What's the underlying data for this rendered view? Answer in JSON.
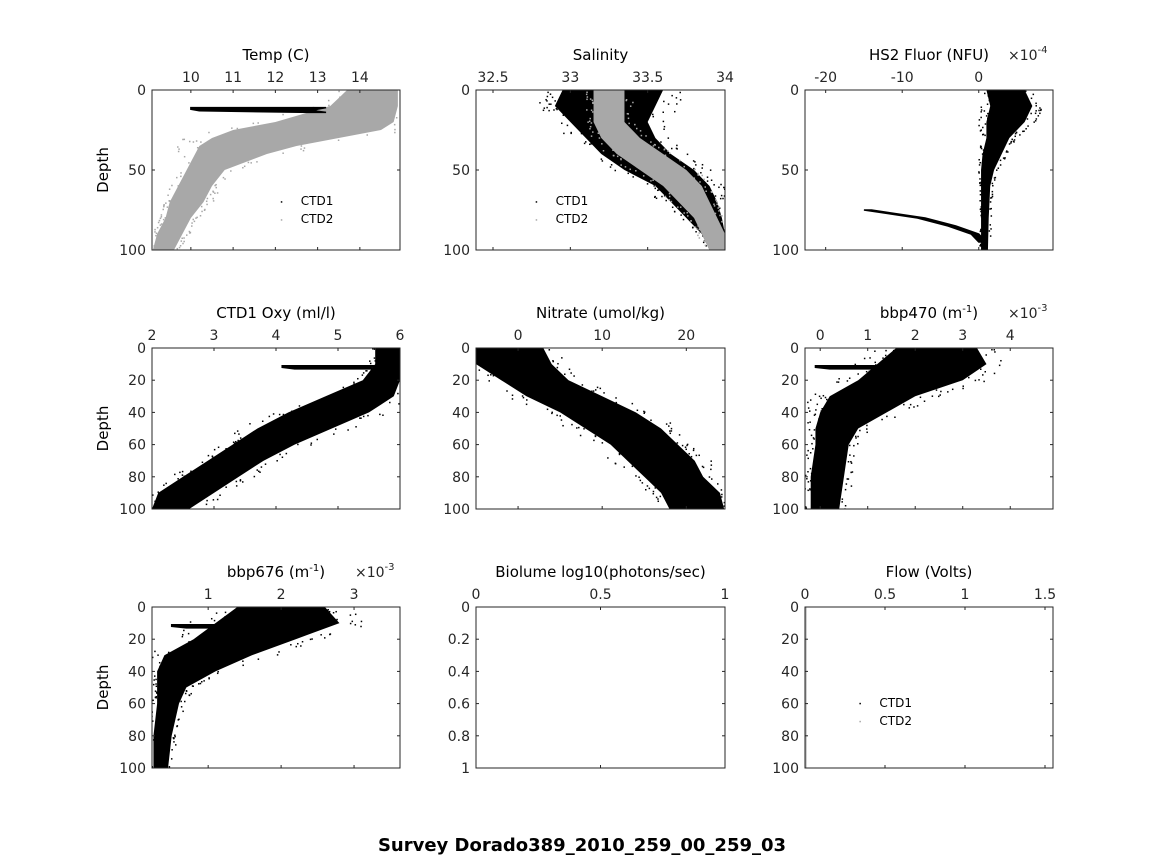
{
  "suptitle": "Survey Dorado389_2010_259_00_259_03",
  "colors": {
    "ctd1": "#000000",
    "ctd2": "#a8a8a8",
    "axis": "#262626"
  },
  "chart_data": [
    {
      "type": "scatter",
      "title": "Temp (C)",
      "title_sup": "",
      "title_end": "",
      "exponent": "",
      "ylabel": "Depth",
      "xlim": [
        9.08,
        14.95
      ],
      "xticks": [
        10,
        11,
        12,
        13,
        14
      ],
      "xticklabels": [
        "10",
        "11",
        "12",
        "13",
        "14"
      ],
      "ylim": [
        0,
        100
      ],
      "yticks": [
        0,
        50,
        100
      ],
      "yticklabels": [
        "0",
        "50",
        "100"
      ],
      "legend": {
        "entries": [
          "CTD1",
          "CTD2"
        ],
        "placement": "lower-right"
      },
      "series": [
        {
          "name": "CTD2",
          "color": "#a8a8a8",
          "depth": [
            0,
            10,
            20,
            25,
            30,
            35,
            40,
            50,
            60,
            70,
            80,
            90,
            100
          ],
          "lo": [
            13.7,
            13.3,
            12.0,
            11.0,
            10.5,
            10.2,
            10.1,
            9.9,
            9.7,
            9.5,
            9.4,
            9.2,
            9.1
          ],
          "hi": [
            14.9,
            14.9,
            14.8,
            14.5,
            13.5,
            12.5,
            11.8,
            10.8,
            10.5,
            10.3,
            10.0,
            9.8,
            9.6
          ]
        },
        {
          "name": "CTD1",
          "color": "#000000",
          "depth": [
            11,
            12,
            13,
            14
          ],
          "lo": [
            10.0,
            10.0,
            10.2,
            12.8
          ],
          "hi": [
            13.2,
            13.0,
            12.9,
            13.2
          ],
          "style": "line"
        }
      ]
    },
    {
      "type": "scatter",
      "title": "Salinity",
      "title_sup": "",
      "title_end": "",
      "exponent": "",
      "ylabel": "",
      "xlim": [
        32.39,
        34.0
      ],
      "xticks": [
        32.5,
        33,
        33.5,
        34
      ],
      "xticklabels": [
        "32.5",
        "33",
        "33.5",
        "34"
      ],
      "ylim": [
        0,
        100
      ],
      "yticks": [
        0,
        50,
        100
      ],
      "yticklabels": [
        "0",
        "50",
        "100"
      ],
      "legend": {
        "entries": [
          "CTD1",
          "CTD2"
        ],
        "placement": "lower-left"
      },
      "series": [
        {
          "name": "CTD1",
          "color": "#000000",
          "depth": [
            0,
            10,
            20,
            30,
            40,
            50,
            60,
            70,
            80,
            90,
            100
          ],
          "lo": [
            32.95,
            32.9,
            33.0,
            33.1,
            33.2,
            33.35,
            33.55,
            33.65,
            33.75,
            33.85,
            33.9
          ],
          "hi": [
            33.6,
            33.55,
            33.5,
            33.55,
            33.65,
            33.8,
            33.9,
            33.95,
            33.98,
            34.0,
            34.0
          ]
        },
        {
          "name": "CTD2",
          "color": "#a8a8a8",
          "depth": [
            0,
            10,
            20,
            30,
            40,
            50,
            60,
            70,
            80,
            90,
            100
          ],
          "lo": [
            33.15,
            33.15,
            33.15,
            33.2,
            33.3,
            33.45,
            33.6,
            33.7,
            33.8,
            33.85,
            33.9
          ],
          "hi": [
            33.35,
            33.35,
            33.35,
            33.45,
            33.6,
            33.75,
            33.85,
            33.9,
            33.95,
            34.0,
            34.0
          ]
        }
      ]
    },
    {
      "type": "scatter",
      "title": "HS2 Fluor (NFU)",
      "title_sup": "",
      "title_end": "",
      "exponent": "-4",
      "ylabel": "",
      "xlim": [
        -22.7,
        9.7
      ],
      "xticks": [
        -20,
        -10,
        0
      ],
      "xticklabels": [
        "-20",
        "-10",
        "0"
      ],
      "ylim": [
        0,
        100
      ],
      "yticks": [
        0,
        50,
        100
      ],
      "yticklabels": [
        "0",
        "50",
        "100"
      ],
      "legend": null,
      "series": [
        {
          "name": "CTD1",
          "color": "#000000",
          "depth": [
            0,
            10,
            20,
            30,
            40,
            50,
            60,
            80,
            100
          ],
          "lo": [
            1,
            1.5,
            1,
            1,
            0.5,
            0.3,
            0.3,
            0.3,
            0.3
          ],
          "hi": [
            6,
            7,
            6,
            4,
            3,
            2,
            1.5,
            1.3,
            1.2
          ]
        },
        {
          "name": "CTD1",
          "color": "#000000",
          "depth": [
            75,
            80,
            85,
            90,
            95
          ],
          "lo": [
            -15,
            -8,
            -4,
            -1,
            0
          ],
          "hi": [
            -14,
            -7,
            -3,
            0,
            1
          ],
          "style": "line"
        }
      ]
    },
    {
      "type": "scatter",
      "title": "CTD1 Oxy (ml/l)",
      "title_sup": "",
      "title_end": "",
      "exponent": "",
      "ylabel": "Depth",
      "xlim": [
        2,
        6
      ],
      "xticks": [
        2,
        3,
        4,
        5,
        6
      ],
      "xticklabels": [
        "2",
        "3",
        "4",
        "5",
        "6"
      ],
      "ylim": [
        0,
        100
      ],
      "yticks": [
        0,
        20,
        40,
        60,
        80,
        100
      ],
      "yticklabels": [
        "0",
        "20",
        "40",
        "60",
        "80",
        "100"
      ],
      "legend": null,
      "series": [
        {
          "name": "CTD1",
          "color": "#000000",
          "depth": [
            0,
            10,
            20,
            30,
            40,
            50,
            60,
            70,
            80,
            90,
            100
          ],
          "lo": [
            5.6,
            5.6,
            5.4,
            4.8,
            4.2,
            3.7,
            3.3,
            2.9,
            2.5,
            2.1,
            2.0
          ],
          "hi": [
            6,
            6,
            6,
            5.9,
            5.5,
            4.9,
            4.3,
            3.8,
            3.4,
            3.0,
            2.6
          ]
        },
        {
          "name": "CTD1",
          "color": "#000000",
          "depth": [
            11,
            12,
            13
          ],
          "lo": [
            4.1,
            4.1,
            4.3
          ],
          "hi": [
            5.6,
            5.5,
            5.6
          ],
          "style": "line"
        }
      ]
    },
    {
      "type": "scatter",
      "title": "Nitrate (umol/kg)",
      "title_sup": "",
      "title_end": "",
      "exponent": "",
      "ylabel": "",
      "xlim": [
        -5,
        24.6
      ],
      "xticks": [
        0,
        10,
        20
      ],
      "xticklabels": [
        "0",
        "10",
        "20"
      ],
      "ylim": [
        0,
        100
      ],
      "yticks": [
        0,
        20,
        40,
        60,
        80,
        100
      ],
      "yticklabels": [
        "0",
        "20",
        "40",
        "60",
        "80",
        "100"
      ],
      "legend": null,
      "series": [
        {
          "name": "CTD1",
          "color": "#000000",
          "depth": [
            0,
            10,
            20,
            30,
            40,
            50,
            60,
            70,
            80,
            90,
            100
          ],
          "lo": [
            -5,
            -5,
            -2,
            1,
            5,
            8,
            11,
            13,
            15,
            17,
            18
          ],
          "hi": [
            3,
            4,
            6,
            10,
            14,
            17,
            19,
            21,
            22,
            24,
            24.5
          ]
        }
      ]
    },
    {
      "type": "scatter",
      "title": "bbp470 (m",
      "title_sup": "-1",
      "title_end": ")",
      "exponent": "-3",
      "ylabel": "",
      "xlim": [
        -0.32,
        4.9
      ],
      "xticks": [
        0,
        1,
        2,
        3,
        4
      ],
      "xticklabels": [
        "0",
        "1",
        "2",
        "3",
        "4"
      ],
      "ylim": [
        0,
        100
      ],
      "yticks": [
        0,
        20,
        40,
        60,
        80,
        100
      ],
      "yticklabels": [
        "0",
        "20",
        "40",
        "60",
        "80",
        "100"
      ],
      "legend": null,
      "series": [
        {
          "name": "CTD1",
          "color": "#000000",
          "depth": [
            0,
            10,
            20,
            30,
            40,
            50,
            60,
            80,
            100
          ],
          "lo": [
            1.6,
            1.2,
            0.8,
            0.2,
            0,
            -0.1,
            -0.1,
            -0.2,
            -0.2
          ],
          "hi": [
            3.3,
            3.5,
            3.0,
            2.0,
            1.4,
            0.8,
            0.6,
            0.5,
            0.4
          ]
        },
        {
          "name": "CTD1",
          "color": "#000000",
          "depth": [
            11,
            12,
            13
          ],
          "lo": [
            -0.1,
            -0.1,
            0.2
          ],
          "hi": [
            1.5,
            1.4,
            1.5
          ],
          "style": "line"
        }
      ]
    },
    {
      "type": "scatter",
      "title": "bbp676 (m",
      "title_sup": "-1",
      "title_end": ")",
      "exponent": "-3",
      "ylabel": "Depth",
      "xlim": [
        0.23,
        3.63
      ],
      "xticks": [
        1,
        2,
        3
      ],
      "xticklabels": [
        "1",
        "2",
        "3"
      ],
      "ylim": [
        0,
        100
      ],
      "yticks": [
        0,
        20,
        40,
        60,
        80,
        100
      ],
      "yticklabels": [
        "0",
        "20",
        "40",
        "60",
        "80",
        "100"
      ],
      "legend": null,
      "series": [
        {
          "name": "CTD1",
          "color": "#000000",
          "depth": [
            0,
            10,
            20,
            30,
            40,
            50,
            60,
            80,
            100
          ],
          "lo": [
            1.4,
            1.1,
            0.8,
            0.4,
            0.3,
            0.3,
            0.3,
            0.25,
            0.25
          ],
          "hi": [
            2.6,
            2.8,
            2.2,
            1.6,
            1.1,
            0.7,
            0.6,
            0.5,
            0.45
          ]
        },
        {
          "name": "CTD1",
          "color": "#000000",
          "depth": [
            11,
            12,
            13
          ],
          "lo": [
            0.5,
            0.5,
            0.7
          ],
          "hi": [
            1.4,
            1.3,
            1.4
          ],
          "style": "line"
        }
      ]
    },
    {
      "type": "scatter",
      "title": "Biolume log10(photons/sec)",
      "title_sup": "",
      "title_end": "",
      "exponent": "",
      "ylabel": "",
      "xlim": [
        0,
        1
      ],
      "xticks": [
        0,
        0.5,
        1
      ],
      "xticklabels": [
        "0",
        "0.5",
        "1"
      ],
      "ylim": [
        0,
        1
      ],
      "yticks": [
        0,
        0.2,
        0.4,
        0.6,
        0.8,
        1
      ],
      "yticklabels": [
        "0",
        "0.2",
        "0.4",
        "0.6",
        "0.8",
        "1"
      ],
      "legend": null,
      "series": []
    },
    {
      "type": "scatter",
      "title": "Flow (Volts)",
      "title_sup": "",
      "title_end": "",
      "exponent": "",
      "ylabel": "",
      "xlim": [
        0,
        1.55
      ],
      "xticks": [
        0,
        0.5,
        1,
        1.5
      ],
      "xticklabels": [
        "0",
        "0.5",
        "1",
        "1.5"
      ],
      "ylim": [
        0,
        100
      ],
      "yticks": [
        0,
        20,
        40,
        60,
        80,
        100
      ],
      "yticklabels": [
        "0",
        "20",
        "40",
        "60",
        "80",
        "100"
      ],
      "legend": {
        "entries": [
          "CTD1",
          "CTD2"
        ],
        "placement": "center"
      },
      "series": [
        {
          "name": "CTD2",
          "color": "#a8a8a8",
          "depth": [
            0,
            100
          ],
          "lo": [
            0,
            0
          ],
          "hi": [
            0.005,
            0.005
          ],
          "style": "line"
        }
      ]
    }
  ]
}
